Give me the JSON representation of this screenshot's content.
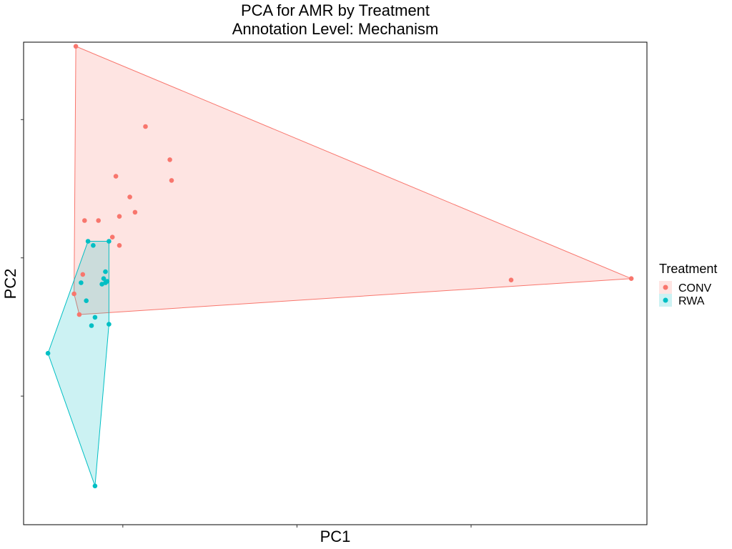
{
  "chart_data": {
    "type": "scatter",
    "title": "PCA for AMR by Treatment",
    "subtitle": "Annotation Level: Mechanism",
    "xlabel": "PC1",
    "ylabel": "PC2",
    "xlim": [
      -0.15,
      3.43
    ],
    "ylim": [
      -1.93,
      1.56
    ],
    "x_ticks": [
      0.42,
      1.42,
      2.42
    ],
    "y_ticks": [
      -1.0,
      0.0,
      1.0
    ],
    "tick_labels_shown": false,
    "grid": false,
    "legend": {
      "title": "Treatment",
      "position": "right"
    },
    "hulls": true,
    "series": [
      {
        "name": "CONV",
        "color": "#F8766D",
        "points": [
          [
            0.15,
            1.53
          ],
          [
            0.55,
            0.95
          ],
          [
            0.69,
            0.71
          ],
          [
            0.7,
            0.56
          ],
          [
            0.38,
            0.59
          ],
          [
            0.46,
            0.44
          ],
          [
            0.49,
            0.33
          ],
          [
            0.28,
            0.27
          ],
          [
            0.4,
            0.3
          ],
          [
            0.2,
            0.27
          ],
          [
            0.36,
            0.15
          ],
          [
            0.4,
            0.09
          ],
          [
            0.19,
            -0.12
          ],
          [
            0.14,
            -0.26
          ],
          [
            0.17,
            -0.41
          ],
          [
            2.65,
            -0.16
          ],
          [
            3.34,
            -0.15
          ]
        ]
      },
      {
        "name": "RWA",
        "color": "#00BFC4",
        "points": [
          [
            0.22,
            0.12
          ],
          [
            0.25,
            0.09
          ],
          [
            0.34,
            0.12
          ],
          [
            0.32,
            -0.1
          ],
          [
            0.31,
            -0.15
          ],
          [
            0.3,
            -0.19
          ],
          [
            0.32,
            -0.18
          ],
          [
            0.33,
            -0.17
          ],
          [
            0.18,
            -0.18
          ],
          [
            0.21,
            -0.31
          ],
          [
            0.26,
            -0.43
          ],
          [
            0.34,
            -0.48
          ],
          [
            0.24,
            -0.49
          ],
          [
            -0.01,
            -0.69
          ],
          [
            0.26,
            -1.65
          ]
        ]
      }
    ]
  }
}
